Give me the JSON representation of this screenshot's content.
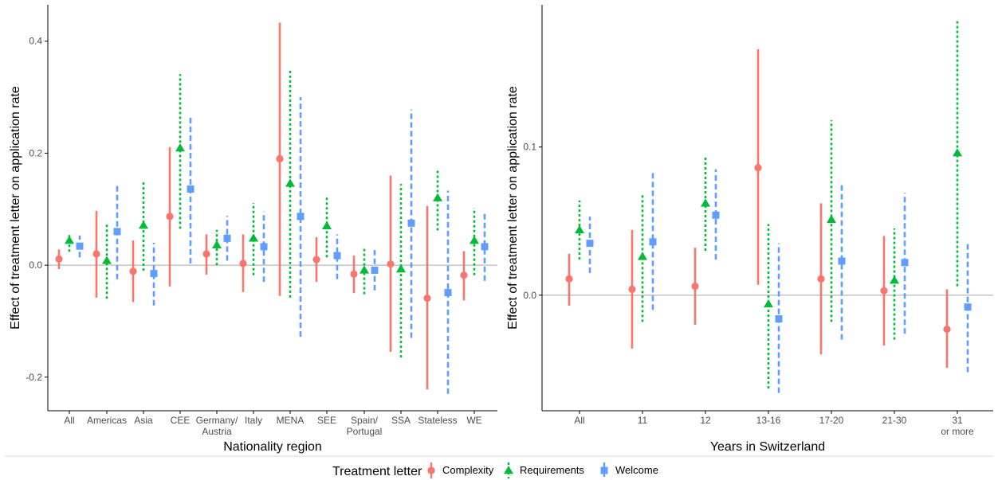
{
  "colors": {
    "Complexity": "#F8766D",
    "Requirements": "#00BA38",
    "Welcome": "#619CFF",
    "zero_line": "#a6a6a6",
    "axis": "#000000",
    "tick_text": "#4d4d4d"
  },
  "legend": {
    "title": "Treatment letter",
    "items": [
      {
        "name": "Complexity",
        "shape": "circle",
        "line": "solid"
      },
      {
        "name": "Requirements",
        "shape": "triangle",
        "line": "dotted"
      },
      {
        "name": "Welcome",
        "shape": "square",
        "line": "dashed"
      }
    ],
    "position": "bottom"
  },
  "chart_data": [
    {
      "type": "scatter",
      "subtype": "point-range",
      "xlabel": "Nationality region",
      "ylabel": "Effect of treatment letter on application rate",
      "ylim": [
        -0.26,
        0.465
      ],
      "yticks": [
        -0.2,
        0.0,
        0.2,
        0.4
      ],
      "ytick_labels": [
        "-0.2",
        "0.0",
        "0.2",
        "0.4"
      ],
      "grid": false,
      "categories": [
        [
          "All"
        ],
        [
          "Americas"
        ],
        [
          "Asia"
        ],
        [
          "CEE"
        ],
        [
          "Germany/",
          "Austria"
        ],
        [
          "Italy"
        ],
        [
          "MENA"
        ],
        [
          "SEE"
        ],
        [
          "Spain/",
          "Portugal"
        ],
        [
          "SSA"
        ],
        [
          "Stateless"
        ],
        [
          "WE"
        ]
      ],
      "series": [
        {
          "name": "Complexity",
          "values": [
            0.011,
            0.02,
            -0.011,
            0.087,
            0.02,
            0.003,
            0.19,
            0.01,
            -0.016,
            0.002,
            -0.059,
            -0.018
          ],
          "lower": [
            -0.007,
            -0.058,
            -0.066,
            -0.038,
            -0.017,
            -0.048,
            -0.055,
            -0.03,
            -0.05,
            -0.155,
            -0.222,
            -0.063
          ],
          "upper": [
            0.028,
            0.097,
            0.044,
            0.211,
            0.055,
            0.055,
            0.433,
            0.05,
            0.017,
            0.16,
            0.106,
            0.025
          ]
        },
        {
          "name": "Requirements",
          "values": [
            0.044,
            0.008,
            0.071,
            0.209,
            0.036,
            0.048,
            0.146,
            0.07,
            -0.009,
            -0.007,
            0.12,
            0.044
          ],
          "lower": [
            0.024,
            -0.06,
            -0.01,
            0.065,
            0.0,
            -0.018,
            -0.058,
            0.014,
            -0.052,
            -0.165,
            0.062,
            -0.018
          ],
          "upper": [
            0.058,
            0.075,
            0.152,
            0.341,
            0.063,
            0.111,
            0.35,
            0.125,
            0.03,
            0.145,
            0.173,
            0.102
          ]
        },
        {
          "name": "Welcome",
          "values": [
            0.034,
            0.06,
            -0.015,
            0.136,
            0.048,
            0.033,
            0.087,
            0.017,
            -0.009,
            0.075,
            -0.049,
            0.033
          ],
          "lower": [
            0.014,
            -0.025,
            -0.072,
            0.003,
            0.008,
            -0.03,
            -0.128,
            -0.025,
            -0.045,
            -0.13,
            -0.23,
            -0.028
          ],
          "upper": [
            0.053,
            0.146,
            0.04,
            0.265,
            0.088,
            0.096,
            0.3,
            0.055,
            0.027,
            0.278,
            0.133,
            0.095
          ]
        }
      ]
    },
    {
      "type": "scatter",
      "subtype": "point-range",
      "xlabel": "Years in Switzerland",
      "ylabel": "Effect of treatment letter on application rate",
      "ylim": [
        -0.078,
        0.196
      ],
      "yticks": [
        0.0,
        0.1
      ],
      "ytick_labels": [
        "0.0",
        "0.1"
      ],
      "grid": false,
      "categories": [
        [
          "All"
        ],
        [
          "11"
        ],
        [
          "12"
        ],
        [
          "13-16"
        ],
        [
          "17-20"
        ],
        [
          "21-30"
        ],
        [
          "31",
          "or more"
        ]
      ],
      "series": [
        {
          "name": "Complexity",
          "values": [
            0.011,
            0.004,
            0.006,
            0.086,
            0.011,
            0.003,
            -0.023
          ],
          "lower": [
            -0.007,
            -0.036,
            -0.02,
            0.007,
            -0.04,
            -0.034,
            -0.049
          ],
          "upper": [
            0.028,
            0.044,
            0.032,
            0.166,
            0.062,
            0.04,
            0.004
          ]
        },
        {
          "name": "Requirements",
          "values": [
            0.044,
            0.026,
            0.062,
            -0.006,
            0.051,
            0.01,
            0.096
          ],
          "lower": [
            0.024,
            -0.018,
            0.03,
            -0.063,
            -0.018,
            -0.03,
            0.006
          ],
          "upper": [
            0.064,
            0.068,
            0.093,
            0.048,
            0.118,
            0.045,
            0.185
          ]
        },
        {
          "name": "Welcome",
          "values": [
            0.035,
            0.036,
            0.054,
            -0.016,
            0.023,
            0.022,
            -0.008
          ],
          "lower": [
            0.015,
            -0.01,
            0.024,
            -0.066,
            -0.03,
            -0.026,
            -0.052
          ],
          "upper": [
            0.053,
            0.083,
            0.085,
            0.035,
            0.075,
            0.069,
            0.035
          ]
        }
      ]
    }
  ]
}
